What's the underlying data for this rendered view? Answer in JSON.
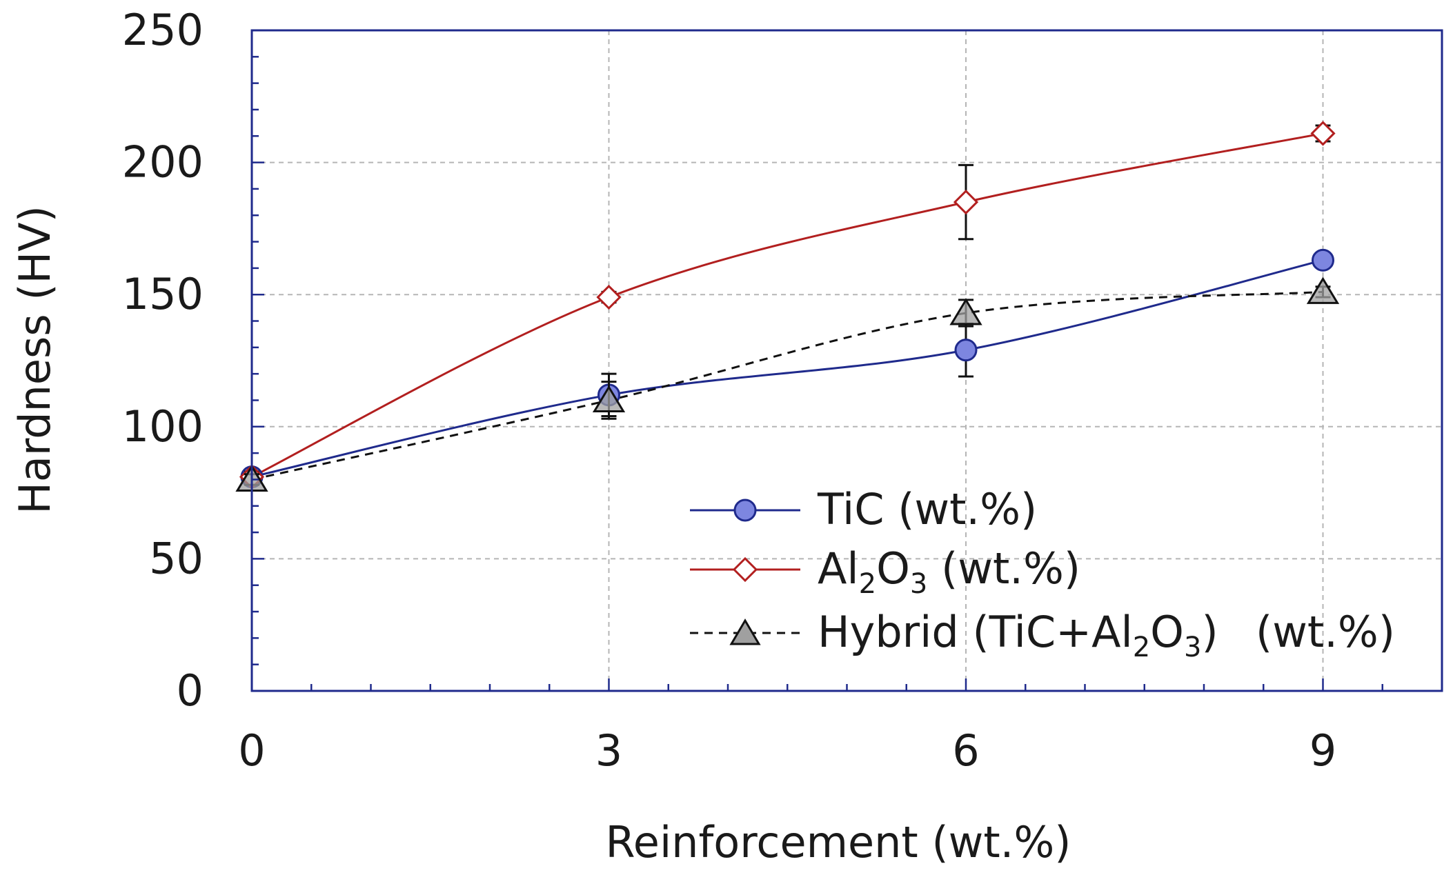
{
  "chart_data": {
    "type": "line",
    "title": "",
    "xlabel": "Reinforcement (wt.%)",
    "ylabel": "Hardness (HV)",
    "xlim": [
      0,
      10
    ],
    "ylim": [
      0,
      250
    ],
    "x_ticks": [
      0,
      3,
      6,
      9
    ],
    "x_tick_labels": [
      "0",
      "3",
      "6",
      "9"
    ],
    "y_ticks": [
      0,
      50,
      100,
      150,
      200,
      250
    ],
    "y_tick_labels": [
      "0",
      "50",
      "100",
      "150",
      "200",
      "250"
    ],
    "grid": true,
    "legend_position": "bottom-right",
    "series": [
      {
        "key": "tic",
        "name": "TiC (wt.%)",
        "label_main": "TiC (wt.%)",
        "x": [
          0,
          3,
          6,
          9
        ],
        "values": [
          81,
          112,
          129,
          163
        ],
        "errors": [
          2,
          8,
          10,
          2
        ],
        "color": "#1f2a8c",
        "marker_fill": "#7d86e0",
        "marker": "circle",
        "line_style": "solid"
      },
      {
        "key": "al2o3",
        "name": "Al2O3 (wt.%)",
        "label_a": "Al",
        "label_sub1": "2",
        "label_b": "O",
        "label_sub2": "3",
        "label_c": " (wt.%)",
        "x": [
          0,
          3,
          6,
          9
        ],
        "values": [
          81,
          149,
          185,
          211
        ],
        "errors": [
          2,
          2,
          14,
          3
        ],
        "color": "#b21f1f",
        "marker_fill": "#ffffff",
        "marker": "diamond",
        "line_style": "solid"
      },
      {
        "key": "hybrid",
        "name": "Hybrid (TiC+Al2O3) (wt.%)",
        "label_a": "Hybrid (TiC+Al",
        "label_sub1": "2",
        "label_b": "O",
        "label_sub2": "3",
        "label_c": ")",
        "label_d": "(wt.%)",
        "x": [
          0,
          3,
          6,
          9
        ],
        "values": [
          80,
          110,
          143,
          151
        ],
        "errors": [
          2,
          7,
          5,
          2
        ],
        "color": "#111111",
        "marker_fill": "#a0a0a0",
        "marker": "triangle",
        "line_style": "dashed"
      }
    ],
    "axis_color": "#1f2a8c",
    "grid_color": "#b5b5b5"
  }
}
